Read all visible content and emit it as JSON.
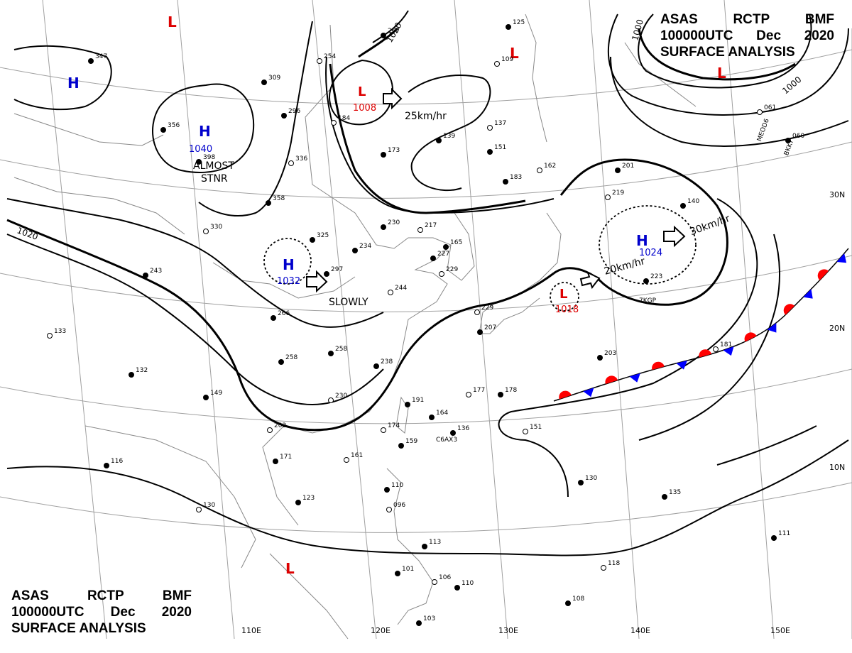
{
  "header_top_right": {
    "line1": [
      "ASAS",
      "RCTP",
      "BMF"
    ],
    "line2": [
      "100000UTC",
      "Dec",
      "2020"
    ],
    "line3": "SURFACE ANALYSIS"
  },
  "header_bottom_left": {
    "line1": [
      "ASAS",
      "RCTP",
      "BMF"
    ],
    "line2": [
      "100000UTC",
      "Dec",
      "2020"
    ],
    "line3": "SURFACE ANALYSIS"
  },
  "graticule_labels": {
    "lon": [
      "110E",
      "120E",
      "130E",
      "140E",
      "150E"
    ],
    "lat": [
      "30N",
      "20N",
      "10N"
    ]
  },
  "pressure_systems": [
    {
      "type": "H",
      "value": "1040",
      "color": "#0000cc"
    },
    {
      "type": "H",
      "value": "1032",
      "color": "#0000cc"
    },
    {
      "type": "H",
      "value": "1024",
      "color": "#0000cc"
    },
    {
      "type": "H",
      "value": "",
      "color": "#0000cc"
    },
    {
      "type": "L",
      "value": "1008",
      "color": "#dd0000"
    },
    {
      "type": "L",
      "value": "1018",
      "color": "#dd0000"
    },
    {
      "type": "L",
      "value": "",
      "color": "#dd0000"
    },
    {
      "type": "L",
      "value": "",
      "color": "#dd0000"
    },
    {
      "type": "L",
      "value": "",
      "color": "#dd0000"
    },
    {
      "type": "L",
      "value": "",
      "color": "#dd0000"
    }
  ],
  "isobar_labels": [
    "1020",
    "1020",
    "1000",
    "1000"
  ],
  "movement_labels": [
    "25km/hr",
    "30km/hr",
    "20km/hr",
    "SLOWLY"
  ],
  "stationary_note": [
    "ALMOST",
    "STNR"
  ],
  "station_plots": [
    "254",
    "309",
    "296",
    "184",
    "173",
    "139",
    "137",
    "151",
    "183",
    "162",
    "356",
    "398",
    "336",
    "358",
    "325",
    "330",
    "234",
    "230",
    "217",
    "165",
    "227",
    "229",
    "297",
    "266",
    "244",
    "243",
    "132",
    "133",
    "258",
    "238",
    "229",
    "207",
    "258",
    "230",
    "149",
    "191",
    "177",
    "178",
    "164",
    "174",
    "159",
    "136",
    "161",
    "171",
    "123",
    "130",
    "116",
    "110",
    "096",
    "113",
    "101",
    "106",
    "110",
    "103",
    "151",
    "130",
    "135",
    "118",
    "111",
    "108",
    "219",
    "223",
    "203",
    "181",
    "140",
    "201",
    "061",
    "060",
    "347",
    "109",
    "125",
    "267",
    "202"
  ],
  "station_ids": [
    "7KGP",
    "C6AX3",
    "MEOD6",
    "BKKY"
  ],
  "colors": {
    "land": "#888888",
    "grid": "#999999",
    "isobar": "#000000",
    "high": "#0000cc",
    "low": "#dd0000",
    "warm_front": "#ff0000",
    "cold_front": "#0000ff"
  }
}
